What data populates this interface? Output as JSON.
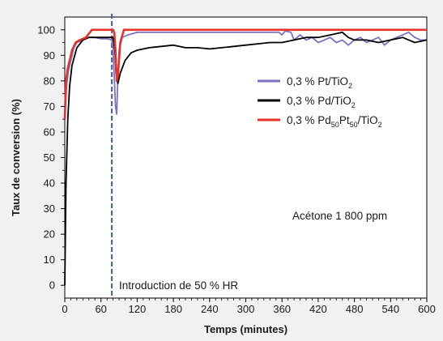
{
  "chart_data": {
    "type": "line",
    "xlabel": "Temps (minutes)",
    "ylabel": "Taux de conversion (%)",
    "xlim": [
      0,
      600
    ],
    "ylim": [
      -5,
      105
    ],
    "xticks": [
      0,
      60,
      120,
      180,
      240,
      300,
      360,
      420,
      480,
      540,
      600
    ],
    "yticks": [
      0,
      10,
      20,
      30,
      40,
      50,
      60,
      70,
      80,
      90,
      100
    ],
    "grid": false,
    "legend_position": "upper-right",
    "series": [
      {
        "name": "0,3 % Pt/TiO2",
        "label_main": "0,3 % Pt/TiO",
        "label_sub": "2",
        "label_tail": "",
        "color": "#7b72c4",
        "points": [
          [
            0,
            65
          ],
          [
            3,
            78
          ],
          [
            6,
            84
          ],
          [
            10,
            88
          ],
          [
            15,
            93
          ],
          [
            20,
            95
          ],
          [
            30,
            96
          ],
          [
            40,
            97
          ],
          [
            50,
            97
          ],
          [
            60,
            96.5
          ],
          [
            70,
            96.5
          ],
          [
            78,
            96
          ],
          [
            80,
            93
          ],
          [
            84,
            70
          ],
          [
            86,
            67
          ],
          [
            88,
            82
          ],
          [
            90,
            92
          ],
          [
            95,
            97
          ],
          [
            105,
            98
          ],
          [
            120,
            99
          ],
          [
            150,
            99
          ],
          [
            200,
            99
          ],
          [
            260,
            99
          ],
          [
            320,
            99
          ],
          [
            355,
            99
          ],
          [
            360,
            98
          ],
          [
            365,
            99.5
          ],
          [
            375,
            99
          ],
          [
            380,
            96
          ],
          [
            390,
            98
          ],
          [
            400,
            96
          ],
          [
            410,
            97
          ],
          [
            420,
            95
          ],
          [
            430,
            96
          ],
          [
            440,
            97
          ],
          [
            450,
            95
          ],
          [
            460,
            96
          ],
          [
            470,
            94
          ],
          [
            480,
            96
          ],
          [
            490,
            97
          ],
          [
            500,
            95
          ],
          [
            510,
            96
          ],
          [
            520,
            97
          ],
          [
            530,
            94
          ],
          [
            540,
            96
          ],
          [
            550,
            97
          ],
          [
            560,
            98
          ],
          [
            570,
            99
          ],
          [
            580,
            97
          ],
          [
            590,
            96
          ],
          [
            600,
            96
          ]
        ]
      },
      {
        "name": "0,3 % Pd/TiO2",
        "label_main": "0,3 % Pd/TiO",
        "label_sub": "2",
        "label_tail": "",
        "color": "#000000",
        "points": [
          [
            0,
            0
          ],
          [
            2,
            40
          ],
          [
            5,
            65
          ],
          [
            8,
            78
          ],
          [
            12,
            86
          ],
          [
            20,
            93
          ],
          [
            30,
            96
          ],
          [
            40,
            97
          ],
          [
            50,
            97
          ],
          [
            60,
            97
          ],
          [
            70,
            97
          ],
          [
            78,
            97
          ],
          [
            80,
            97
          ],
          [
            83,
            92
          ],
          [
            85,
            83
          ],
          [
            88,
            79
          ],
          [
            92,
            83
          ],
          [
            100,
            88
          ],
          [
            110,
            91
          ],
          [
            120,
            92
          ],
          [
            140,
            93
          ],
          [
            160,
            93.5
          ],
          [
            180,
            94
          ],
          [
            200,
            93
          ],
          [
            220,
            93
          ],
          [
            240,
            92.5
          ],
          [
            260,
            93
          ],
          [
            280,
            93.5
          ],
          [
            300,
            94
          ],
          [
            320,
            94.5
          ],
          [
            340,
            95
          ],
          [
            360,
            95
          ],
          [
            380,
            96
          ],
          [
            400,
            97
          ],
          [
            420,
            97
          ],
          [
            440,
            98
          ],
          [
            460,
            99
          ],
          [
            470,
            97
          ],
          [
            480,
            96
          ],
          [
            500,
            96
          ],
          [
            520,
            95
          ],
          [
            540,
            96
          ],
          [
            560,
            97
          ],
          [
            580,
            95
          ],
          [
            600,
            96
          ]
        ]
      },
      {
        "name": "0,3 % Pd50Pt50/TiO2",
        "label_main": "0,3 % Pd",
        "label_sub": "50",
        "label_tail": "Pt",
        "label_sub2": "50",
        "label_tail2": "/TiO",
        "label_sub3": "2",
        "color": "#e8312a",
        "points": [
          [
            0,
            65
          ],
          [
            2,
            80
          ],
          [
            5,
            85
          ],
          [
            8,
            88
          ],
          [
            12,
            92
          ],
          [
            18,
            95
          ],
          [
            25,
            96
          ],
          [
            35,
            97
          ],
          [
            45,
            100
          ],
          [
            60,
            100
          ],
          [
            75,
            100
          ],
          [
            80,
            100
          ],
          [
            82,
            99
          ],
          [
            84,
            92
          ],
          [
            86,
            80
          ],
          [
            88,
            82
          ],
          [
            92,
            95
          ],
          [
            98,
            100
          ],
          [
            120,
            100
          ],
          [
            200,
            100
          ],
          [
            300,
            100
          ],
          [
            400,
            100
          ],
          [
            500,
            100
          ],
          [
            600,
            100
          ]
        ]
      }
    ],
    "annotations": [
      {
        "text": "Acétone 1 800 ppm",
        "x": 380,
        "y": 28
      },
      {
        "text": "Introduction de 50 % HR",
        "x": 88,
        "y": 0
      }
    ],
    "marker_line": {
      "x": 78,
      "color": "#3d5fb0"
    }
  }
}
